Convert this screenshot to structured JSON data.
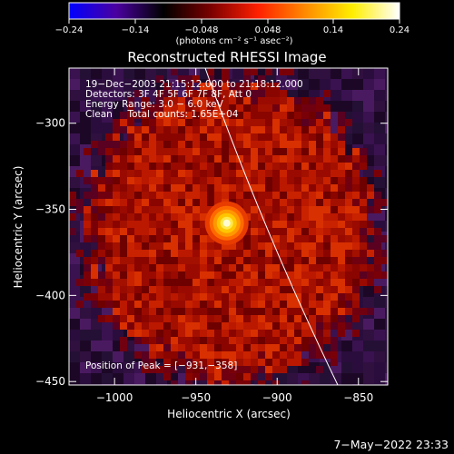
{
  "colorbar": {
    "tick_labels": [
      "−0.24",
      "−0.14",
      "−0.048",
      "0.048",
      "0.14",
      "0.24"
    ],
    "unit_label": "(photons cm⁻² s⁻¹ asec⁻²)",
    "colors": [
      "#0000ff",
      "#4b00a0",
      "#000000",
      "#7a0000",
      "#ff2000",
      "#ff8a00",
      "#ffee00",
      "#ffffff"
    ]
  },
  "image": {
    "title": "Reconstructed RHESSI Image",
    "time_range": "19−Dec−2003 21:15:12.000 to 21:18:12.000",
    "detectors": "Detectors: 3F 4F 5F 6F 7F 8F, Att 0",
    "energy": "Energy Range: 3.0 − 6.0 keV",
    "counts": "Clean     Total counts: 1.65E+04",
    "peak": "Position of Peak = [−931,−358]",
    "xlabel": "Heliocentric X (arcsec)",
    "ylabel": "Heliocentric Y (arcsec)",
    "xticks": [
      "−1000",
      "−950",
      "−900",
      "−850"
    ],
    "yticks": [
      "−300",
      "−350",
      "−400",
      "−450"
    ],
    "xvals": [
      -1000,
      -950,
      -900,
      -850
    ],
    "yvals": [
      -300,
      -350,
      -400,
      -450
    ],
    "xlim": [
      -1028,
      -832
    ],
    "ylim": [
      -452,
      -268
    ],
    "peak_x": -931,
    "peak_y": -358
  },
  "footer": {
    "date": "7−May−2022 23:33"
  }
}
